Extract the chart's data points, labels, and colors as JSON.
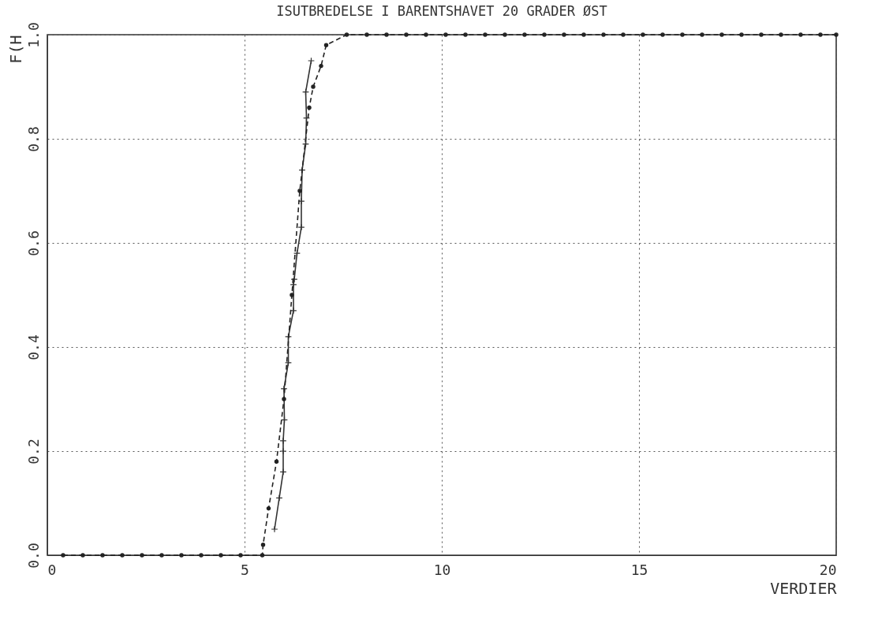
{
  "chart_data": {
    "type": "line",
    "title": "ISUTBREDELSE I BARENTSHAVET 20 GRADER ØST",
    "xlabel": "VERDIER",
    "ylabel": "F(H",
    "xlim": [
      0,
      20
    ],
    "ylim": [
      0,
      1
    ],
    "xticks": [
      0,
      5,
      10,
      15,
      20
    ],
    "yticks": [
      {
        "value": 0,
        "label": "0.0"
      },
      0.2,
      0.4,
      0.6,
      0.8,
      {
        "value": 1,
        "label": "1.0"
      }
    ],
    "grid": true,
    "series": [
      {
        "color": "#333333",
        "marker": "cross",
        "line_style": "solid",
        "x": [
          5.76,
          5.88,
          5.98,
          5.98,
          5.98,
          6.01,
          6.0,
          6.11,
          6.11,
          6.24,
          6.24,
          6.26,
          6.33,
          6.44,
          6.44,
          6.46,
          6.55,
          6.57,
          6.55,
          6.69
        ],
        "values": [
          0.05,
          0.11,
          0.16,
          0.2,
          0.22,
          0.26,
          0.32,
          0.37,
          0.42,
          0.47,
          0.52,
          0.53,
          0.58,
          0.63,
          0.68,
          0.74,
          0.79,
          0.84,
          0.89,
          0.95
        ]
      },
      {
        "color": "#222222",
        "marker": "circle",
        "line_style": "dashed",
        "x": [
          0.4,
          0.9,
          1.4,
          1.9,
          2.4,
          2.9,
          3.4,
          3.9,
          4.4,
          4.9,
          5.45,
          5.47,
          5.61,
          5.81,
          6.0,
          6.2,
          6.4,
          6.64,
          6.74,
          6.94,
          7.07,
          7.59,
          8.1,
          8.6,
          9.1,
          9.6,
          10.1,
          10.6,
          11.1,
          11.6,
          12.1,
          12.6,
          13.1,
          13.6,
          14.1,
          14.6,
          15.1,
          15.6,
          16.1,
          16.6,
          17.1,
          17.6,
          18.1,
          18.6,
          19.1,
          19.6,
          20.0
        ],
        "values": [
          0,
          0,
          0,
          0,
          0,
          0,
          0,
          0,
          0,
          0,
          0,
          0.02,
          0.09,
          0.18,
          0.3,
          0.5,
          0.7,
          0.86,
          0.9,
          0.94,
          0.98,
          1,
          1,
          1,
          1,
          1,
          1,
          1,
          1,
          1,
          1,
          1,
          1,
          1,
          1,
          1,
          1,
          1,
          1,
          1,
          1,
          1,
          1,
          1,
          1,
          1,
          1
        ]
      }
    ]
  }
}
